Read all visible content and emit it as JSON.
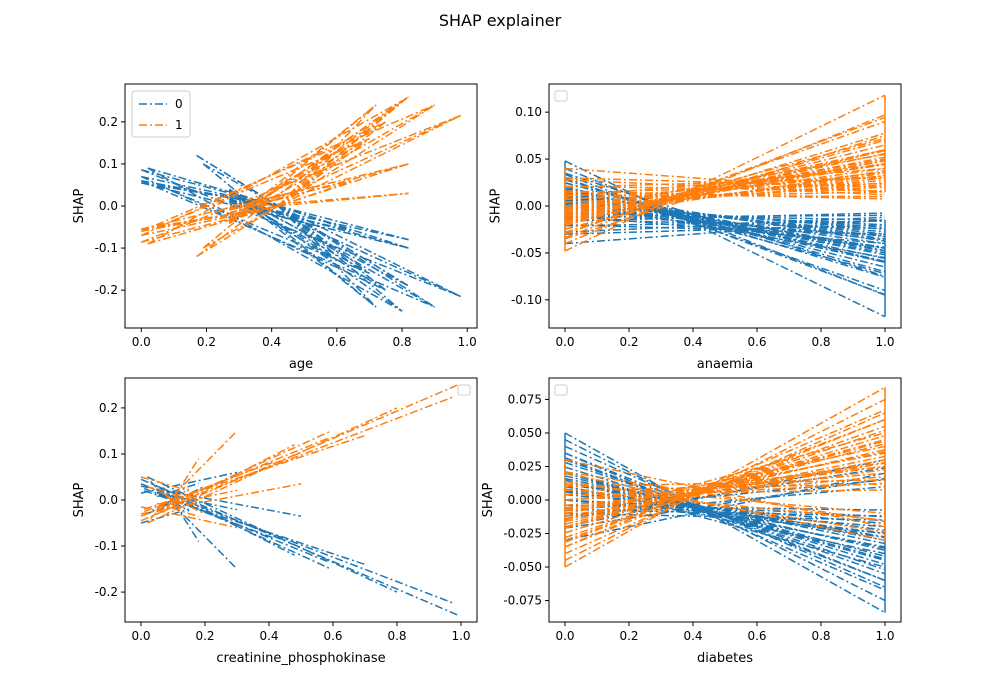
{
  "figure": {
    "title": "SHAP explainer"
  },
  "chart_data": [
    {
      "type": "line",
      "xlabel": "age",
      "ylabel": "SHAP",
      "xlim": [
        -0.05,
        1.03
      ],
      "ylim": [
        -0.29,
        0.29
      ],
      "xticks": [
        "0.0",
        "0.2",
        "0.4",
        "0.6",
        "0.8",
        "1.0"
      ],
      "yticks": [
        "0.2",
        "0.1",
        "0.0",
        "-0.1",
        "-0.2"
      ],
      "ytick_values": [
        0.2,
        0.1,
        0.0,
        -0.1,
        -0.2
      ],
      "legend": {
        "placement": "upper-left",
        "entries": [
          "0",
          "1"
        ]
      },
      "series": [
        {
          "name": "0",
          "color": "#1f77b4",
          "pivot_x": 0.42,
          "left_x": [
            0.0,
            0.0,
            0.17,
            0.0,
            0.02,
            0.19,
            0.0,
            0.05
          ],
          "left_y": [
            0.086,
            0.06,
            0.12,
            0.055,
            0.09,
            0.1,
            0.07,
            0.05
          ],
          "right_x": [
            0.98,
            0.9,
            0.82,
            0.82,
            0.8,
            0.72,
            0.75,
            0.7,
            0.82,
            0.6,
            0.65,
            0.55
          ],
          "right_y": [
            -0.215,
            -0.24,
            -0.19,
            -0.1,
            -0.25,
            -0.24,
            -0.2,
            -0.16,
            -0.08,
            -0.13,
            -0.06,
            -0.05
          ]
        },
        {
          "name": "1",
          "color": "#ff7f0e",
          "pivot_x": 0.42,
          "left_x": [
            0.0,
            0.0,
            0.17,
            0.0,
            0.02,
            0.19,
            0.0,
            0.05
          ],
          "left_y": [
            -0.086,
            -0.06,
            -0.12,
            -0.055,
            -0.09,
            -0.1,
            -0.07,
            -0.05
          ],
          "right_x": [
            0.98,
            0.9,
            0.82,
            0.82,
            0.8,
            0.72,
            0.75,
            0.7,
            0.82,
            0.6,
            0.65,
            0.55
          ],
          "right_y": [
            0.215,
            0.24,
            0.26,
            0.1,
            0.25,
            0.24,
            0.2,
            0.16,
            0.03,
            0.13,
            0.06,
            0.05
          ]
        }
      ]
    },
    {
      "type": "line",
      "xlabel": "anaemia",
      "ylabel": "SHAP",
      "xlim": [
        -0.05,
        1.05
      ],
      "ylim": [
        -0.13,
        0.13
      ],
      "xticks": [
        "0.0",
        "0.2",
        "0.4",
        "0.6",
        "0.8",
        "1.0"
      ],
      "yticks": [
        "0.10",
        "0.05",
        "0.00",
        "-0.05",
        "-0.10"
      ],
      "ytick_values": [
        0.1,
        0.05,
        0.0,
        -0.05,
        -0.1
      ],
      "legend": {
        "placement": "upper-left",
        "entries": []
      },
      "series": [
        {
          "name": "0",
          "color": "#1f77b4",
          "start_y": [
            0.048,
            0.04,
            0.03,
            0.025,
            0.02,
            0.015,
            0.01,
            0.0,
            -0.01,
            -0.02,
            -0.03,
            -0.04,
            0.035,
            0.005
          ],
          "end_y": [
            -0.118,
            -0.095,
            -0.09,
            -0.07,
            -0.065,
            -0.06,
            -0.05,
            -0.045,
            -0.04,
            -0.03,
            -0.02,
            -0.015,
            -0.075,
            -0.055
          ]
        },
        {
          "name": "1",
          "color": "#ff7f0e",
          "start_y": [
            -0.048,
            -0.04,
            -0.03,
            -0.025,
            -0.02,
            -0.015,
            -0.01,
            0.0,
            0.01,
            0.02,
            0.03,
            0.04,
            -0.035,
            -0.005
          ],
          "end_y": [
            0.118,
            0.097,
            0.09,
            0.07,
            0.065,
            0.06,
            0.05,
            0.045,
            0.04,
            0.03,
            0.02,
            0.015,
            0.075,
            0.055
          ]
        }
      ]
    },
    {
      "type": "line",
      "xlabel": "creatinine_phosphokinase",
      "ylabel": "SHAP",
      "xlim": [
        -0.05,
        1.05
      ],
      "ylim": [
        -0.265,
        0.265
      ],
      "xticks": [
        "0.0",
        "0.2",
        "0.4",
        "0.6",
        "0.8",
        "1.0"
      ],
      "yticks": [
        "0.2",
        "0.1",
        "0.0",
        "-0.1",
        "-0.2"
      ],
      "ytick_values": [
        0.2,
        0.1,
        0.0,
        -0.1,
        -0.2
      ],
      "legend": {
        "placement": "upper-right",
        "entries": []
      },
      "series": [
        {
          "name": "0",
          "color": "#1f77b4",
          "start_x": [
            0.0,
            0.0,
            0.02,
            0.01,
            0.0,
            0.03,
            0.0,
            0.01,
            0.02,
            0.0
          ],
          "start_y": [
            0.045,
            0.035,
            0.05,
            0.02,
            0.03,
            0.04,
            0.015,
            0.025,
            -0.03,
            -0.05
          ],
          "end_x": [
            0.99,
            0.98,
            0.8,
            0.7,
            0.5,
            0.3,
            0.3,
            0.25,
            0.2,
            0.15
          ],
          "end_y": [
            -0.25,
            -0.225,
            -0.2,
            -0.14,
            -0.035,
            -0.15,
            0.06,
            -0.04,
            0.03,
            -0.02
          ]
        },
        {
          "name": "1",
          "color": "#ff7f0e",
          "start_x": [
            0.0,
            0.0,
            0.02,
            0.01,
            0.0,
            0.03,
            0.0,
            0.01,
            0.02,
            0.0
          ],
          "start_y": [
            -0.045,
            -0.035,
            -0.05,
            -0.02,
            -0.03,
            -0.04,
            -0.015,
            -0.025,
            0.03,
            0.05
          ],
          "end_x": [
            0.99,
            0.98,
            0.8,
            0.7,
            0.5,
            0.3,
            0.3,
            0.25,
            0.2,
            0.15
          ],
          "end_y": [
            0.25,
            0.225,
            0.2,
            0.14,
            0.035,
            0.15,
            -0.06,
            0.04,
            -0.03,
            0.02
          ]
        }
      ]
    },
    {
      "type": "line",
      "xlabel": "diabetes",
      "ylabel": "SHAP",
      "xlim": [
        -0.05,
        1.05
      ],
      "ylim": [
        -0.091,
        0.091
      ],
      "xticks": [
        "0.0",
        "0.2",
        "0.4",
        "0.6",
        "0.8",
        "1.0"
      ],
      "yticks": [
        "0.075",
        "0.050",
        "0.025",
        "0.000",
        "-0.025",
        "-0.050",
        "-0.075"
      ],
      "ytick_values": [
        0.075,
        0.05,
        0.025,
        0.0,
        -0.025,
        -0.05,
        -0.075
      ],
      "legend": {
        "placement": "upper-left",
        "entries": []
      },
      "series": [
        {
          "name": "0",
          "color": "#1f77b4",
          "start_y": [
            0.05,
            0.045,
            0.04,
            0.03,
            0.02,
            0.01,
            0.0,
            -0.01,
            -0.02,
            -0.03,
            0.035,
            0.015
          ],
          "end_y": [
            -0.084,
            -0.075,
            -0.065,
            -0.055,
            -0.045,
            -0.035,
            -0.025,
            -0.015,
            0.03,
            0.02,
            -0.06,
            -0.05
          ]
        },
        {
          "name": "1",
          "color": "#ff7f0e",
          "start_y": [
            -0.05,
            -0.045,
            -0.04,
            -0.03,
            -0.02,
            -0.01,
            0.0,
            0.01,
            0.02,
            0.03,
            -0.035,
            -0.015
          ],
          "end_y": [
            0.084,
            0.075,
            0.065,
            0.055,
            0.045,
            0.035,
            0.025,
            0.015,
            -0.03,
            -0.02,
            0.06,
            0.05
          ]
        }
      ]
    }
  ]
}
